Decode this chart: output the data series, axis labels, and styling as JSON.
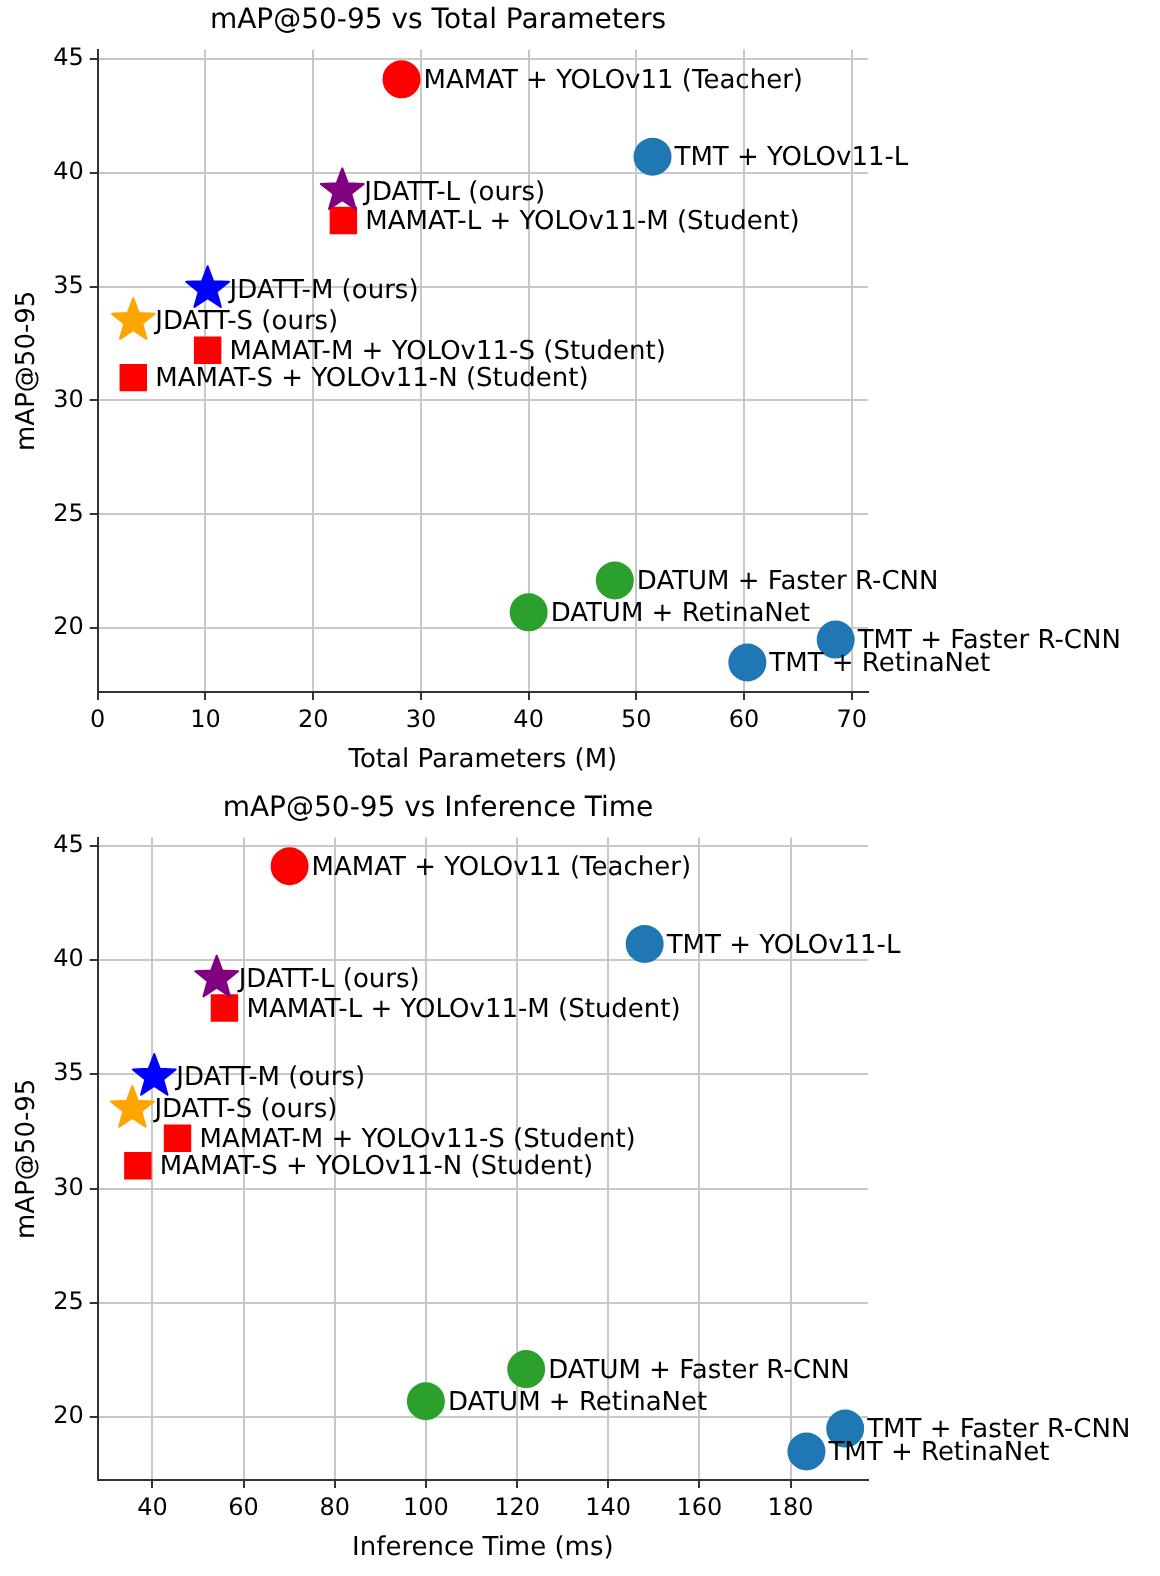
{
  "chart_data": [
    {
      "type": "scatter",
      "title": "mAP@50-95 vs Total Parameters",
      "xlabel": "Total Parameters (M)",
      "ylabel": "mAP@50-95",
      "xlim": [
        0,
        71.5
      ],
      "xticks": [
        0,
        10,
        20,
        30,
        40,
        50,
        60,
        70
      ],
      "ylim": [
        17.2,
        45.4
      ],
      "yticks": [
        20,
        25,
        30,
        35,
        40,
        45
      ],
      "grid": true,
      "legend": false,
      "series": [
        {
          "name": "MAMAT + YOLOv11 (Teacher)",
          "color": "#ff0000",
          "marker": "circle",
          "x": [
            28.2
          ],
          "values": [
            44.1
          ]
        },
        {
          "name": "TMT + YOLOv11-L",
          "color": "#1f77b4",
          "marker": "circle",
          "x": [
            51.5
          ],
          "values": [
            40.7
          ]
        },
        {
          "name": "JDATT-L (ours)",
          "color": "#800080",
          "marker": "star",
          "x": [
            22.7
          ],
          "values": [
            39.2
          ]
        },
        {
          "name": "MAMAT-L + YOLOv11-M (Student)",
          "color": "#ff0000",
          "marker": "square",
          "x": [
            22.8
          ],
          "values": [
            37.9
          ]
        },
        {
          "name": "JDATT-M (ours)",
          "color": "#0000ff",
          "marker": "star",
          "x": [
            10.2
          ],
          "values": [
            34.9
          ]
        },
        {
          "name": "JDATT-S (ours)",
          "color": "#ffa500",
          "marker": "star",
          "x": [
            3.3
          ],
          "values": [
            33.5
          ]
        },
        {
          "name": "MAMAT-M + YOLOv11-S (Student)",
          "color": "#ff0000",
          "marker": "square",
          "x": [
            10.2
          ],
          "values": [
            32.2
          ]
        },
        {
          "name": "MAMAT-S + YOLOv11-N (Student)",
          "color": "#ff0000",
          "marker": "square",
          "x": [
            3.3
          ],
          "values": [
            31.0
          ]
        },
        {
          "name": "DATUM + Faster R-CNN",
          "color": "#2ca02c",
          "marker": "circle",
          "x": [
            48
          ],
          "values": [
            22.1
          ]
        },
        {
          "name": "DATUM + RetinaNet",
          "color": "#2ca02c",
          "marker": "circle",
          "x": [
            40
          ],
          "values": [
            20.7
          ]
        },
        {
          "name": "TMT + Faster R-CNN",
          "color": "#1f77b4",
          "marker": "circle",
          "x": [
            68.5
          ],
          "values": [
            19.5
          ]
        },
        {
          "name": "TMT + RetinaNet",
          "color": "#1f77b4",
          "marker": "circle",
          "x": [
            60.3
          ],
          "values": [
            18.5
          ]
        }
      ]
    },
    {
      "type": "scatter",
      "title": "mAP@50-95 vs Inference Time",
      "xlabel": "Inference Time (ms)",
      "ylabel": "mAP@50-95",
      "xlim": [
        28,
        197
      ],
      "xticks": [
        40,
        60,
        80,
        100,
        120,
        140,
        160,
        180
      ],
      "ylim": [
        17.25,
        45.35
      ],
      "yticks": [
        20,
        25,
        30,
        35,
        40,
        45
      ],
      "grid": true,
      "legend": false,
      "series": [
        {
          "name": "MAMAT + YOLOv11 (Teacher)",
          "color": "#ff0000",
          "marker": "circle",
          "x": [
            70.1
          ],
          "values": [
            44.1
          ]
        },
        {
          "name": "TMT + YOLOv11-L",
          "color": "#1f77b4",
          "marker": "circle",
          "x": [
            148
          ],
          "values": [
            40.7
          ]
        },
        {
          "name": "JDATT-L (ours)",
          "color": "#800080",
          "marker": "star",
          "x": [
            54.1
          ],
          "values": [
            39.2
          ]
        },
        {
          "name": "MAMAT-L + YOLOv11-M (Student)",
          "color": "#ff0000",
          "marker": "square",
          "x": [
            55.8
          ],
          "values": [
            37.9
          ]
        },
        {
          "name": "JDATT-M (ours)",
          "color": "#0000ff",
          "marker": "star",
          "x": [
            40.4
          ],
          "values": [
            34.9
          ]
        },
        {
          "name": "JDATT-S (ours)",
          "color": "#ffa500",
          "marker": "star",
          "x": [
            35.6
          ],
          "values": [
            33.5
          ]
        },
        {
          "name": "MAMAT-M + YOLOv11-S (Student)",
          "color": "#ff0000",
          "marker": "square",
          "x": [
            45.5
          ],
          "values": [
            32.2
          ]
        },
        {
          "name": "MAMAT-S + YOLOv11-N (Student)",
          "color": "#ff0000",
          "marker": "square",
          "x": [
            36.8
          ],
          "values": [
            31.0
          ]
        },
        {
          "name": "DATUM + Faster R-CNN",
          "color": "#2ca02c",
          "marker": "circle",
          "x": [
            122
          ],
          "values": [
            22.1
          ]
        },
        {
          "name": "DATUM + RetinaNet",
          "color": "#2ca02c",
          "marker": "circle",
          "x": [
            100
          ],
          "values": [
            20.7
          ]
        },
        {
          "name": "TMT + Faster R-CNN",
          "color": "#1f77b4",
          "marker": "circle",
          "x": [
            192
          ],
          "values": [
            19.5
          ]
        },
        {
          "name": "TMT + RetinaNet",
          "color": "#1f77b4",
          "marker": "circle",
          "x": [
            183.5
          ],
          "values": [
            18.5
          ]
        }
      ]
    }
  ]
}
